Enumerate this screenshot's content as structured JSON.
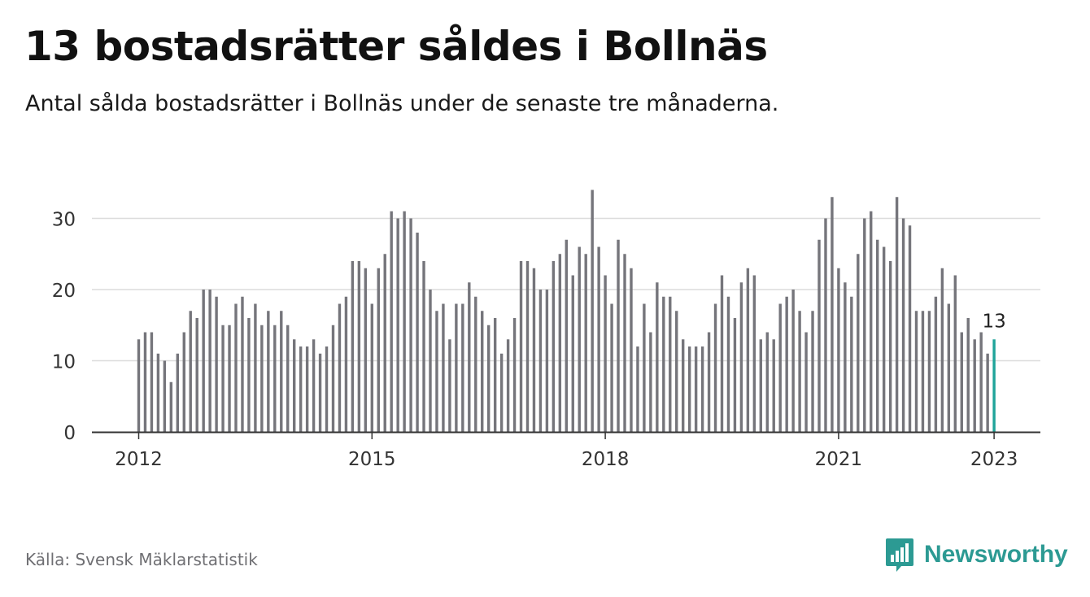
{
  "header": {
    "title": "13 bostadsrätter såldes i Bollnäs",
    "subtitle": "Antal sålda bostadsrätter i Bollnäs under de senaste tre månaderna."
  },
  "footer": {
    "source": "Källa: Svensk Mäklarstatistik",
    "brand": "Newsworthy"
  },
  "colors": {
    "bar": "#75757b",
    "highlight": "#1fa49a",
    "grid": "#dcdcdc",
    "axis": "#333333",
    "brand": "#2c9a93"
  },
  "chart_data": {
    "type": "bar",
    "title": "",
    "xlabel": "",
    "ylabel": "",
    "ylim": [
      0,
      35
    ],
    "y_ticks": [
      0,
      10,
      20,
      30
    ],
    "x_tick_labels": [
      "2012",
      "2015",
      "2018",
      "2021",
      "2023"
    ],
    "x_start": "2012-01",
    "x_end": "2023-01",
    "highlight_label": "13",
    "grid": "horizontal",
    "values": [
      13,
      14,
      14,
      11,
      10,
      7,
      11,
      14,
      17,
      16,
      20,
      20,
      19,
      15,
      15,
      18,
      19,
      16,
      18,
      15,
      17,
      15,
      17,
      15,
      13,
      12,
      12,
      13,
      11,
      12,
      15,
      18,
      19,
      24,
      24,
      23,
      18,
      23,
      25,
      31,
      30,
      31,
      30,
      28,
      24,
      20,
      17,
      18,
      13,
      18,
      18,
      21,
      19,
      17,
      15,
      16,
      11,
      13,
      16,
      24,
      24,
      23,
      20,
      20,
      24,
      25,
      27,
      22,
      26,
      25,
      34,
      26,
      22,
      18,
      27,
      25,
      23,
      12,
      18,
      14,
      21,
      19,
      19,
      17,
      13,
      12,
      12,
      12,
      14,
      18,
      22,
      19,
      16,
      21,
      23,
      22,
      13,
      14,
      13,
      18,
      19,
      20,
      17,
      14,
      17,
      27,
      30,
      33,
      23,
      21,
      19,
      25,
      30,
      31,
      27,
      26,
      24,
      33,
      30,
      29,
      17,
      17,
      17,
      19,
      23,
      18,
      22,
      14,
      16,
      13,
      14,
      11,
      13
    ]
  }
}
